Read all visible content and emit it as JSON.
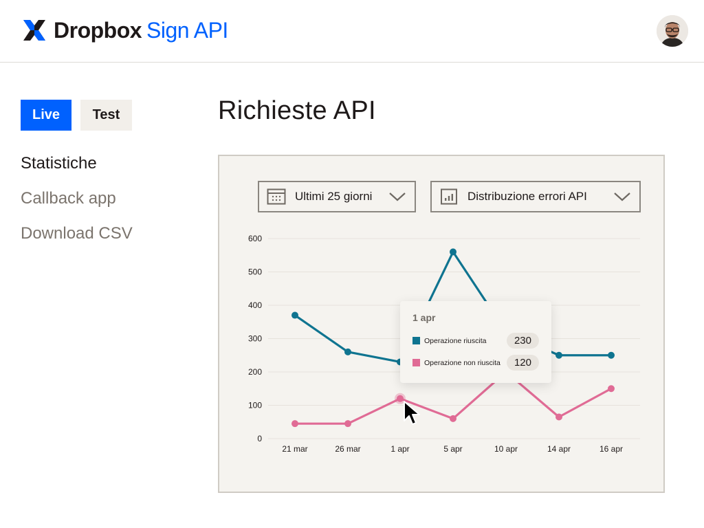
{
  "header": {
    "brand": "Dropbox",
    "product": "Sign API",
    "logo_icon": "dropbox-sign-logo",
    "avatar_icon": "user-avatar"
  },
  "env_toggle": {
    "live_label": "Live",
    "test_label": "Test",
    "selected": "Live",
    "live_color": "#0061fe"
  },
  "sidebar": {
    "items": [
      {
        "label": "Statistiche",
        "active": true
      },
      {
        "label": "Callback app",
        "active": false
      },
      {
        "label": "Download CSV",
        "active": false
      }
    ]
  },
  "main": {
    "title": "Richieste API",
    "filters": {
      "date_range": {
        "label": "Ultimi 25 giorni",
        "icon": "calendar-icon"
      },
      "metric": {
        "label": "Distribuzione errori API",
        "icon": "bar-chart-icon"
      }
    },
    "tooltip": {
      "date": "1 apr",
      "rows": [
        {
          "label": "Operazione riuscita",
          "value": "230",
          "color": "#0f7490"
        },
        {
          "label": "Operazione non riuscita",
          "value": "120",
          "color": "#e06b95"
        }
      ]
    }
  },
  "chart_data": {
    "type": "line",
    "title": "Richieste API",
    "xlabel": "",
    "ylabel": "",
    "categories": [
      "21 mar",
      "26 mar",
      "1 apr",
      "5 apr",
      "10 apr",
      "14 apr",
      "16 apr"
    ],
    "yticks": [
      0,
      100,
      200,
      300,
      400,
      500,
      600
    ],
    "ylim": [
      0,
      600
    ],
    "grid": true,
    "series": [
      {
        "name": "Operazione riuscita",
        "color": "#0f7490",
        "values": [
          370,
          260,
          230,
          560,
          320,
          250,
          250
        ]
      },
      {
        "name": "Operazione non riuscita",
        "color": "#e06b95",
        "values": [
          45,
          45,
          120,
          60,
          200,
          65,
          150
        ]
      }
    ],
    "highlighted_category": "1 apr"
  }
}
